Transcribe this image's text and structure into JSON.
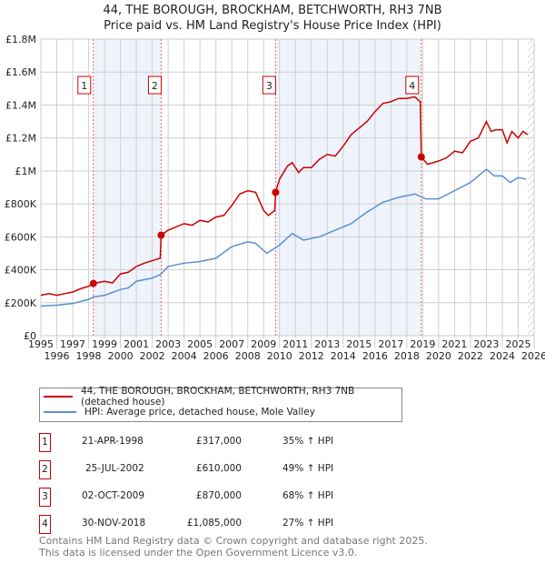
{
  "chart_data": {
    "type": "line",
    "title": "44, THE BOROUGH, BROCKHAM, BETCHWORTH, RH3 7NB",
    "subtitle": "Price paid vs. HM Land Registry's House Price Index (HPI)",
    "xlim": [
      1995,
      2026
    ],
    "ylim": [
      0,
      1800000
    ],
    "x_ticks": [
      "1995",
      "1996",
      "1997",
      "1998",
      "1999",
      "2000",
      "2001",
      "2002",
      "2003",
      "2004",
      "2005",
      "2006",
      "2007",
      "2008",
      "2009",
      "2010",
      "2011",
      "2012",
      "2013",
      "2014",
      "2015",
      "2016",
      "2017",
      "2018",
      "2019",
      "2020",
      "2021",
      "2022",
      "2023",
      "2024",
      "2025",
      "2026"
    ],
    "y_ticks": [
      {
        "v": 0,
        "label": "£0"
      },
      {
        "v": 200000,
        "label": "£200K"
      },
      {
        "v": 400000,
        "label": "£400K"
      },
      {
        "v": 600000,
        "label": "£600K"
      },
      {
        "v": 800000,
        "label": "£800K"
      },
      {
        "v": 1000000,
        "label": "£1M"
      },
      {
        "v": 1200000,
        "label": "£1.2M"
      },
      {
        "v": 1400000,
        "label": "£1.4M"
      },
      {
        "v": 1600000,
        "label": "£1.6M"
      },
      {
        "v": 1800000,
        "label": "£1.8M"
      }
    ],
    "grid": true,
    "shaded_periods": [
      [
        1998.3,
        2002.56
      ],
      [
        2009.75,
        2018.91
      ]
    ],
    "series": [
      {
        "name": "44, THE BOROUGH, BROCKHAM, BETCHWORTH, RH3 7NB (detached house)",
        "color": "#cc0000",
        "x": [
          1995,
          1995.5,
          1996,
          1996.5,
          1997,
          1997.5,
          1998,
          1998.3,
          1999,
          1999.5,
          2000,
          2000.5,
          2001,
          2001.5,
          2002,
          2002.5,
          2002.56,
          2003,
          2003.5,
          2004,
          2004.5,
          2005,
          2005.5,
          2006,
          2006.5,
          2007,
          2007.5,
          2008,
          2008.5,
          2009,
          2009.3,
          2009.7,
          2009.75,
          2010,
          2010.5,
          2010.8,
          2011.2,
          2011.5,
          2012,
          2012.5,
          2013,
          2013.5,
          2014,
          2014.5,
          2015,
          2015.5,
          2016,
          2016.5,
          2017,
          2017.5,
          2018,
          2018.5,
          2018.85,
          2018.91,
          2019.3,
          2020,
          2020.5,
          2021,
          2021.5,
          2022,
          2022.5,
          2023,
          2023.3,
          2023.6,
          2024,
          2024.3,
          2024.6,
          2025,
          2025.3,
          2025.6
        ],
        "y": [
          245000,
          255000,
          245000,
          255000,
          265000,
          285000,
          300000,
          317000,
          330000,
          320000,
          375000,
          385000,
          420000,
          440000,
          455000,
          470000,
          610000,
          640000,
          660000,
          680000,
          670000,
          700000,
          690000,
          720000,
          730000,
          790000,
          860000,
          880000,
          870000,
          760000,
          730000,
          760000,
          870000,
          950000,
          1030000,
          1050000,
          990000,
          1020000,
          1020000,
          1070000,
          1100000,
          1090000,
          1150000,
          1220000,
          1260000,
          1300000,
          1360000,
          1410000,
          1420000,
          1440000,
          1440000,
          1450000,
          1420000,
          1085000,
          1040000,
          1060000,
          1080000,
          1120000,
          1110000,
          1180000,
          1200000,
          1300000,
          1240000,
          1250000,
          1250000,
          1170000,
          1240000,
          1200000,
          1240000,
          1220000
        ]
      },
      {
        "name": "HPI: Average price, detached house, Mole Valley",
        "color": "#5b8fd0",
        "x": [
          1995,
          1996,
          1997,
          1998,
          1998.3,
          1999,
          2000,
          2000.5,
          2001,
          2002,
          2002.5,
          2003,
          2004,
          2005,
          2006,
          2007,
          2008,
          2008.5,
          2009.2,
          2010,
          2010.8,
          2011.5,
          2012.5,
          2013.5,
          2014.5,
          2015.5,
          2016.5,
          2017.5,
          2018.5,
          2019.2,
          2020,
          2021,
          2022,
          2023,
          2023.5,
          2024,
          2024.5,
          2025,
          2025.5
        ],
        "y": [
          180000,
          185000,
          195000,
          220000,
          235000,
          245000,
          280000,
          290000,
          330000,
          350000,
          370000,
          420000,
          440000,
          450000,
          470000,
          540000,
          570000,
          560000,
          500000,
          550000,
          620000,
          580000,
          600000,
          640000,
          680000,
          750000,
          810000,
          840000,
          860000,
          830000,
          830000,
          880000,
          930000,
          1010000,
          970000,
          970000,
          930000,
          960000,
          950000
        ]
      }
    ],
    "sales": [
      {
        "id": "1",
        "x": 1998.3,
        "y": 317000,
        "date": "21-APR-1998",
        "price": "£317,000",
        "hpi": "35% ↑ HPI"
      },
      {
        "id": "2",
        "x": 2002.56,
        "y": 610000,
        "date": "25-JUL-2002",
        "price": "£610,000",
        "hpi": "49% ↑ HPI"
      },
      {
        "id": "3",
        "x": 2009.75,
        "y": 870000,
        "date": "02-OCT-2009",
        "price": "£870,000",
        "hpi": "68% ↑ HPI"
      },
      {
        "id": "4",
        "x": 2018.91,
        "y": 1085000,
        "date": "30-NOV-2018",
        "price": "£1,085,000",
        "hpi": "27% ↑ HPI"
      }
    ],
    "legend_placement": "below"
  },
  "footer": {
    "line1": "Contains HM Land Registry data © Crown copyright and database right 2025.",
    "line2": "This data is licensed under the Open Government Licence v3.0."
  }
}
